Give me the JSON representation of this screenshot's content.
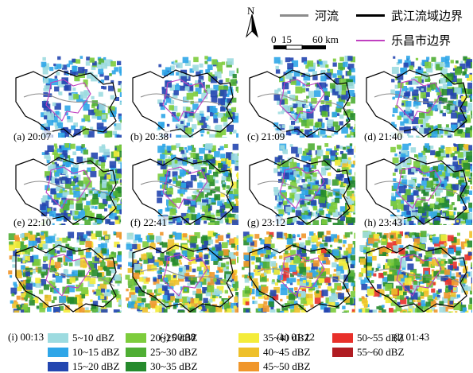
{
  "legend": {
    "north": "N",
    "scale_ticks": [
      "0",
      "15",
      "60 km"
    ],
    "river": {
      "label": "河流",
      "color": "#8c8c8c"
    },
    "basin_boundary": {
      "label": "武江流域边界",
      "color": "#000000"
    },
    "city_boundary": {
      "label": "乐昌市边界",
      "color": "#c040c0"
    }
  },
  "panels": [
    {
      "label": "(a) 20:07",
      "intensity": 0.3
    },
    {
      "label": "(b) 20:38",
      "intensity": 0.34
    },
    {
      "label": "(c) 21:09",
      "intensity": 0.45
    },
    {
      "label": "(d) 21:40",
      "intensity": 0.55
    },
    {
      "label": "(e) 22:10",
      "intensity": 0.62
    },
    {
      "label": "(f) 22:41",
      "intensity": 0.65
    },
    {
      "label": "(g) 23:12",
      "intensity": 0.7
    },
    {
      "label": "(h) 23:43",
      "intensity": 0.75
    },
    {
      "label": "(i) 00:13",
      "intensity": 0.8
    },
    {
      "label": "(j) 00:38",
      "intensity": 0.85
    },
    {
      "label": "(k) 01:12",
      "intensity": 0.9
    },
    {
      "label": "(l) 01:43",
      "intensity": 0.95
    }
  ],
  "dbz_legend": [
    {
      "label": "5~10 dBZ",
      "color": "#9ddbe0"
    },
    {
      "label": "10~15 dBZ",
      "color": "#2fa6e8"
    },
    {
      "label": "15~20 dBZ",
      "color": "#2346b0"
    },
    {
      "label": "20~25 dBZ",
      "color": "#7dcc3c"
    },
    {
      "label": "25~30 dBZ",
      "color": "#4fae34"
    },
    {
      "label": "30~35 dBZ",
      "color": "#258a2c"
    },
    {
      "label": "35~40 dBZ",
      "color": "#f4ec3a"
    },
    {
      "label": "40~45 dBZ",
      "color": "#eec02a"
    },
    {
      "label": "45~50 dBZ",
      "color": "#f0962a"
    },
    {
      "label": "50~55 dBZ",
      "color": "#e8302a"
    },
    {
      "label": "55~60 dBZ",
      "color": "#b01c22"
    }
  ]
}
